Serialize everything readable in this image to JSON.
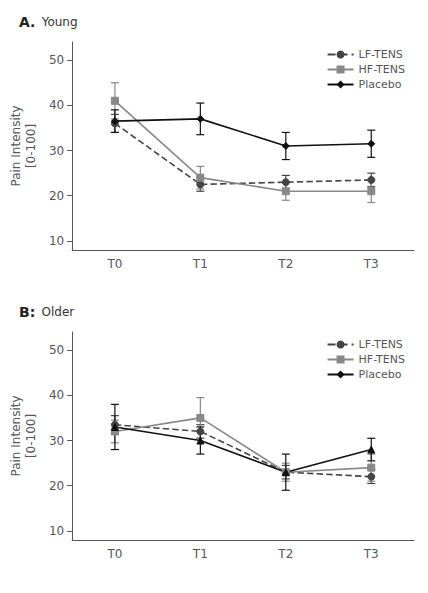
{
  "chart_data": [
    {
      "type": "line",
      "title": "A.",
      "subtitle": "Young",
      "categories": [
        "T0",
        "T1",
        "T2",
        "T3"
      ],
      "series": [
        {
          "name": "LF-TENS",
          "color": "#444444",
          "marker": "circle",
          "line_style": "dashed",
          "values": [
            36.0,
            22.5,
            23.0,
            23.5
          ],
          "errors": [
            2.0,
            1.5,
            1.5,
            1.5
          ]
        },
        {
          "name": "HF-TENS",
          "color": "#888888",
          "marker": "square",
          "line_style": "solid",
          "values": [
            41.0,
            24.0,
            21.0,
            21.0
          ],
          "errors": [
            4.0,
            2.5,
            2.0,
            2.5
          ]
        },
        {
          "name": "Placebo",
          "color": "#111111",
          "marker": "diamond",
          "line_style": "solid",
          "values": [
            36.5,
            37.0,
            31.0,
            31.5
          ],
          "errors": [
            2.5,
            3.5,
            3.0,
            3.0
          ]
        }
      ],
      "ylim": [
        8,
        54
      ],
      "yticks": [
        10,
        20,
        30,
        40,
        50
      ],
      "ylabel": "Pain Intensity\n[0-100]",
      "grid": false,
      "legend": "upper right"
    },
    {
      "type": "line",
      "title": "B:",
      "subtitle": "Older",
      "categories": [
        "T0",
        "T1",
        "T2",
        "T3"
      ],
      "series": [
        {
          "name": "LF-TENS",
          "color": "#444444",
          "marker": "circle",
          "line_style": "dashed",
          "values": [
            33.5,
            32.0,
            23.0,
            22.0
          ],
          "errors": [
            2.0,
            1.5,
            1.5,
            1.5
          ]
        },
        {
          "name": "HF-TENS",
          "color": "#888888",
          "marker": "square",
          "line_style": "solid",
          "values": [
            32.0,
            35.0,
            23.0,
            24.0
          ],
          "errors": [
            2.5,
            4.5,
            2.0,
            3.0
          ]
        },
        {
          "name": "Placebo",
          "color": "#111111",
          "marker": "triangle",
          "line_style": "solid",
          "values": [
            33.0,
            30.0,
            23.0,
            28.0
          ],
          "errors": [
            5.0,
            3.0,
            4.0,
            2.5
          ]
        }
      ],
      "ylim": [
        8,
        54
      ],
      "yticks": [
        10,
        20,
        30,
        40,
        50
      ],
      "ylabel": "Pain Intensity\n[0-100]",
      "grid": false,
      "legend": "upper right"
    }
  ]
}
